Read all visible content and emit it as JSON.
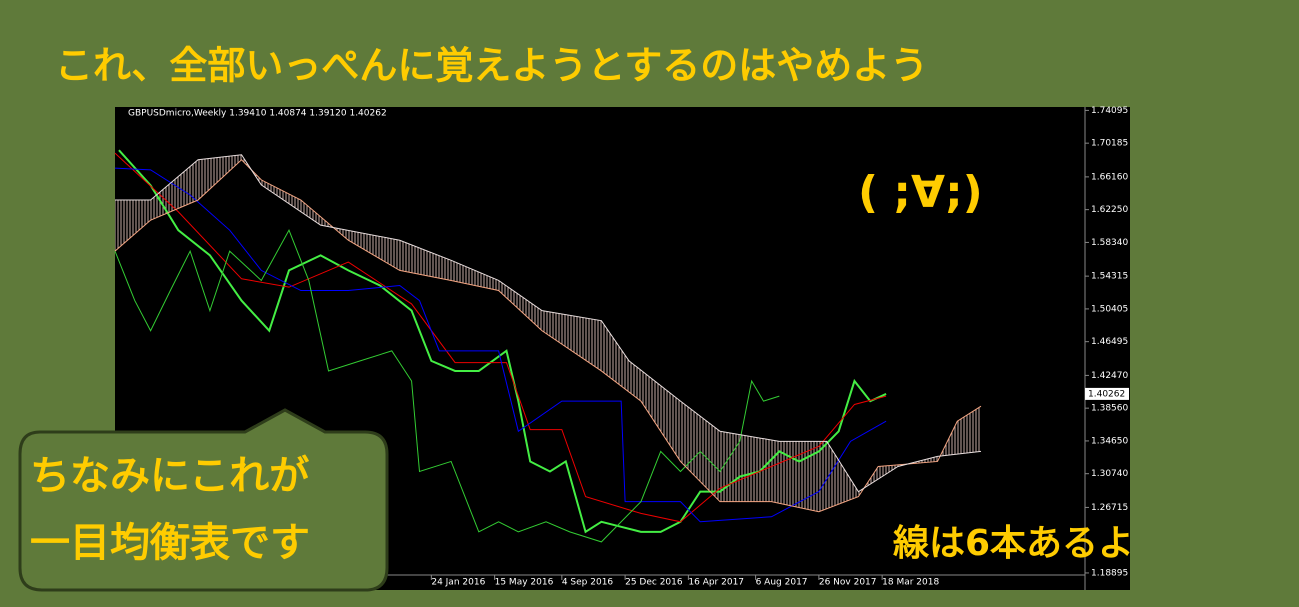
{
  "headline": "これ、全部いっぺんに覚えようとするのはやめよう",
  "emoticon": "( ;∀;)",
  "note": "線は6本あるよ",
  "bubble": {
    "line1": "ちなみにこれが",
    "line2": "一目均衡表です"
  },
  "chart_data": {
    "type": "line",
    "header": "GBPUSDmicro,Weekly  1.39410 1.40874 1.39120 1.40262",
    "last_price": {
      "value": 1.40262,
      "label": "1.40262"
    },
    "xlim": [
      -86,
      159.3
    ],
    "ylim": [
      1.1686,
      1.745
    ],
    "xticks": [
      {
        "value": -6,
        "label": "24 Jan 2016"
      },
      {
        "value": 10,
        "label": "15 May 2016"
      },
      {
        "value": 27,
        "label": "4 Sep 2016"
      },
      {
        "value": 43,
        "label": "25 Dec 2016"
      },
      {
        "value": 59,
        "label": "16 Apr 2017"
      },
      {
        "value": 76,
        "label": "6 Aug 2017"
      },
      {
        "value": 92,
        "label": "26 Nov 2017"
      },
      {
        "value": 108,
        "label": "18 Mar 2018"
      }
    ],
    "yticks": [
      1.74095,
      1.70185,
      {
        "value": 1.6616,
        "label": "1.66160"
      },
      {
        "value": 1.6225,
        "label": "1.62250"
      },
      {
        "value": 1.5834,
        "label": "1.58340"
      },
      1.54315,
      1.50405,
      1.46495,
      {
        "value": 1.4247,
        "label": "1.42470"
      },
      {
        "value": 1.3856,
        "label": "1.38560"
      },
      {
        "value": 1.3465,
        "label": "1.34650"
      },
      {
        "value": 1.3074,
        "label": "1.30740"
      },
      1.26715,
      1.18895
    ],
    "series": [
      {
        "color": "#44ee44",
        "x": [
          -85,
          -77,
          -70,
          -62,
          -54,
          -47,
          -42,
          -34,
          -27,
          -19,
          -11,
          -6,
          0,
          6,
          13,
          16,
          19,
          24,
          28,
          33,
          37,
          42,
          47,
          52,
          57,
          62,
          67,
          72,
          77,
          82,
          87,
          92,
          97,
          101,
          105,
          109
        ],
        "values": [
          1.6935,
          1.6515,
          1.598,
          1.568,
          1.514,
          1.478,
          1.55,
          1.568,
          1.55,
          1.532,
          1.502,
          1.442,
          1.43,
          1.43,
          1.454,
          1.394,
          1.322,
          1.31,
          1.322,
          1.238,
          1.25,
          1.244,
          1.238,
          1.238,
          1.25,
          1.286,
          1.286,
          1.304,
          1.31,
          1.334,
          1.322,
          1.334,
          1.358,
          1.418,
          1.394,
          1.4026
        ]
      },
      {
        "color": "#ee0000",
        "x": [
          -86,
          -70,
          -54,
          -42,
          -27,
          -11,
          0,
          13,
          16,
          19,
          27,
          33,
          47,
          57,
          67,
          82,
          92,
          101,
          109
        ],
        "values": [
          1.69,
          1.62,
          1.54,
          1.53,
          1.56,
          1.51,
          1.44,
          1.44,
          1.4,
          1.36,
          1.36,
          1.28,
          1.26,
          1.25,
          1.29,
          1.32,
          1.34,
          1.39,
          1.4
        ]
      },
      {
        "color": "#0000ff",
        "x": [
          -86,
          -77,
          -67,
          -57,
          -49,
          -39,
          -27,
          -14,
          -9,
          -4,
          11,
          16,
          27,
          42,
          43,
          57,
          62,
          80,
          92,
          100,
          109
        ],
        "values": [
          1.672,
          1.67,
          1.64,
          1.598,
          1.55,
          1.526,
          1.526,
          1.532,
          1.514,
          1.454,
          1.454,
          1.358,
          1.394,
          1.394,
          1.274,
          1.274,
          1.25,
          1.256,
          1.286,
          1.346,
          1.37
        ]
      },
      {
        "color": "#33cc33",
        "x": [
          -86,
          -81,
          -77,
          -72,
          -67,
          -62,
          -57,
          -49,
          -42,
          -37,
          -32,
          -24,
          -16,
          -11,
          -9,
          -1,
          6,
          11,
          16,
          23,
          29,
          37,
          47,
          52,
          57,
          62,
          67,
          72,
          75,
          78,
          82
        ],
        "values": [
          1.573,
          1.514,
          1.478,
          1.526,
          1.573,
          1.502,
          1.573,
          1.538,
          1.598,
          1.538,
          1.43,
          1.442,
          1.454,
          1.418,
          1.31,
          1.322,
          1.238,
          1.25,
          1.238,
          1.25,
          1.238,
          1.226,
          1.274,
          1.334,
          1.31,
          1.334,
          1.31,
          1.346,
          1.418,
          1.394,
          1.4
        ]
      },
      {
        "color": "#f4a582",
        "x": [
          -86,
          -77,
          -65,
          -54,
          -49,
          -39,
          -27,
          -14,
          -1,
          11,
          22,
          37,
          47,
          57,
          67,
          80,
          92,
          102,
          107,
          122,
          127,
          133
        ],
        "values": [
          1.573,
          1.61,
          1.634,
          1.682,
          1.658,
          1.634,
          1.586,
          1.55,
          1.538,
          1.526,
          1.478,
          1.43,
          1.394,
          1.322,
          1.274,
          1.274,
          1.262,
          1.28,
          1.316,
          1.322,
          1.37,
          1.388
        ]
      },
      {
        "color": "#e8dede",
        "x": [
          -86,
          -77,
          -65,
          -54,
          -49,
          -34,
          -14,
          -1,
          11,
          22,
          37,
          44,
          57,
          67,
          82,
          94,
          102,
          112,
          122,
          133
        ],
        "values": [
          1.634,
          1.634,
          1.682,
          1.688,
          1.652,
          1.604,
          1.586,
          1.562,
          1.538,
          1.502,
          1.49,
          1.442,
          1.394,
          1.358,
          1.346,
          1.346,
          1.286,
          1.316,
          1.328,
          1.334
        ]
      }
    ]
  }
}
